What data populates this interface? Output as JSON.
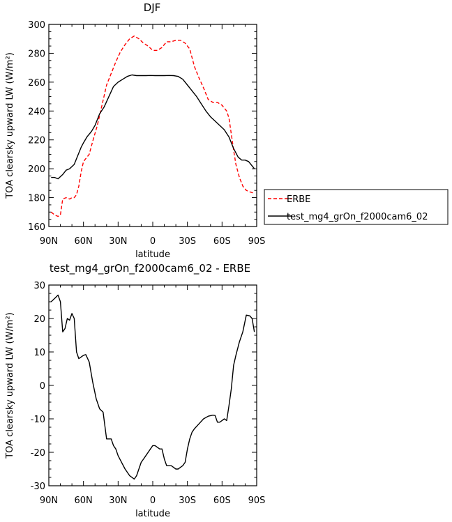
{
  "chart_data": [
    {
      "type": "line",
      "title": "DJF",
      "xlabel": "latitude",
      "ylabel": "TOA clearsky upward LW (W/m²)",
      "xlim": [
        90,
        -90
      ],
      "ylim": [
        160,
        300
      ],
      "x_ticks": [
        90,
        60,
        30,
        0,
        -30,
        -60,
        -90
      ],
      "x_tick_labels": [
        "90N",
        "60N",
        "30N",
        "0",
        "30S",
        "60S",
        "90S"
      ],
      "y_ticks": [
        160,
        180,
        200,
        220,
        240,
        260,
        280,
        300
      ],
      "legend": "right",
      "series": [
        {
          "name": "ERBE",
          "color": "#ff0000",
          "dash": "dashed",
          "x": [
            88,
            85,
            82,
            80,
            78,
            75,
            72,
            70,
            68,
            66,
            64,
            62,
            60,
            58,
            55,
            52,
            48,
            44,
            40,
            36,
            32,
            28,
            24,
            20,
            16,
            12,
            8,
            4,
            0,
            -4,
            -8,
            -12,
            -16,
            -20,
            -24,
            -28,
            -32,
            -36,
            -40,
            -44,
            -48,
            -52,
            -56,
            -60,
            -64,
            -66,
            -68,
            -70,
            -72,
            -75,
            -78,
            -81,
            -84,
            -88
          ],
          "y": [
            170,
            168,
            167,
            168,
            179,
            180,
            179,
            180,
            180,
            182,
            188,
            198,
            205,
            207,
            210,
            219,
            230,
            244,
            258,
            266,
            274,
            281,
            286,
            290,
            292,
            290,
            287,
            285,
            282,
            282,
            284,
            288,
            288,
            289,
            289,
            287,
            283,
            271,
            263,
            256,
            248,
            246,
            246,
            244,
            240,
            235,
            224,
            213,
            203,
            194,
            188,
            185,
            184,
            183
          ]
        },
        {
          "name": "test_mg4_grOn_f2000cam6_02",
          "color": "#000000",
          "dash": "solid",
          "x": [
            88,
            85,
            82,
            78,
            75,
            72,
            68,
            65,
            62,
            60,
            57,
            53,
            50,
            46,
            42,
            38,
            34,
            30,
            26,
            22,
            18,
            14,
            10,
            6,
            2,
            -2,
            -6,
            -10,
            -14,
            -18,
            -22,
            -26,
            -30,
            -34,
            -38,
            -42,
            -46,
            -50,
            -54,
            -58,
            -62,
            -66,
            -70,
            -74,
            -77,
            -80,
            -83,
            -86,
            -88
          ],
          "y": [
            194,
            194,
            193,
            196,
            199,
            200,
            203,
            209,
            215,
            218,
            222,
            226,
            230,
            238,
            243,
            250,
            257,
            260,
            262,
            264,
            265,
            264.5,
            264.5,
            264.5,
            264.6,
            264.5,
            264.5,
            264.5,
            264.6,
            264.5,
            264,
            262,
            258,
            254,
            250,
            245,
            240,
            236,
            233,
            230,
            227,
            222,
            214,
            208,
            206,
            206,
            205,
            202,
            200
          ]
        }
      ]
    },
    {
      "type": "line",
      "title": "test_mg4_grOn_f2000cam6_02 - ERBE",
      "xlabel": "latitude",
      "ylabel": "TOA clearsky upward LW (W/m²)",
      "xlim": [
        90,
        -90
      ],
      "ylim": [
        -30,
        30
      ],
      "x_ticks": [
        90,
        60,
        30,
        0,
        -30,
        -60,
        -90
      ],
      "x_tick_labels": [
        "90N",
        "60N",
        "30N",
        "0",
        "30S",
        "60S",
        "90S"
      ],
      "y_ticks": [
        -30,
        -20,
        -10,
        0,
        10,
        20,
        30
      ],
      "series": [
        {
          "color": "#000000",
          "dash": "solid",
          "x": [
            88,
            85,
            82,
            80,
            78,
            76,
            74,
            72,
            70,
            68,
            66,
            64,
            62,
            60,
            58,
            55,
            52,
            49,
            46,
            43,
            40,
            38,
            36,
            34,
            32,
            30,
            27,
            24,
            20,
            16,
            14,
            12,
            10,
            8,
            6,
            4,
            2,
            0,
            -2,
            -4,
            -6,
            -8,
            -10,
            -12,
            -14,
            -16,
            -18,
            -20,
            -22,
            -24,
            -26,
            -28,
            -30,
            -32,
            -34,
            -36,
            -40,
            -44,
            -48,
            -52,
            -54,
            -56,
            -58,
            -60,
            -62,
            -64,
            -66,
            -68,
            -70,
            -72,
            -75,
            -78,
            -81,
            -84,
            -86,
            -88
          ],
          "y": [
            25,
            26,
            27,
            25,
            16,
            17,
            20,
            19.5,
            21.5,
            20,
            10,
            8,
            8.5,
            9,
            9.2,
            7,
            1,
            -4,
            -7,
            -8,
            -16,
            -16,
            -16,
            -18,
            -19,
            -21,
            -23,
            -25,
            -27,
            -28,
            -27,
            -25,
            -23,
            -22,
            -21,
            -20,
            -19,
            -18,
            -18,
            -18.5,
            -19,
            -19,
            -22,
            -24,
            -24,
            -24,
            -24.5,
            -25,
            -25,
            -24.5,
            -24,
            -23,
            -19,
            -16,
            -14,
            -13,
            -11.5,
            -10,
            -9.2,
            -8.9,
            -9,
            -11,
            -11,
            -10.5,
            -10,
            -10.5,
            -6,
            -1,
            6,
            9,
            13,
            16,
            21,
            20.8,
            20,
            16
          ]
        }
      ]
    }
  ]
}
